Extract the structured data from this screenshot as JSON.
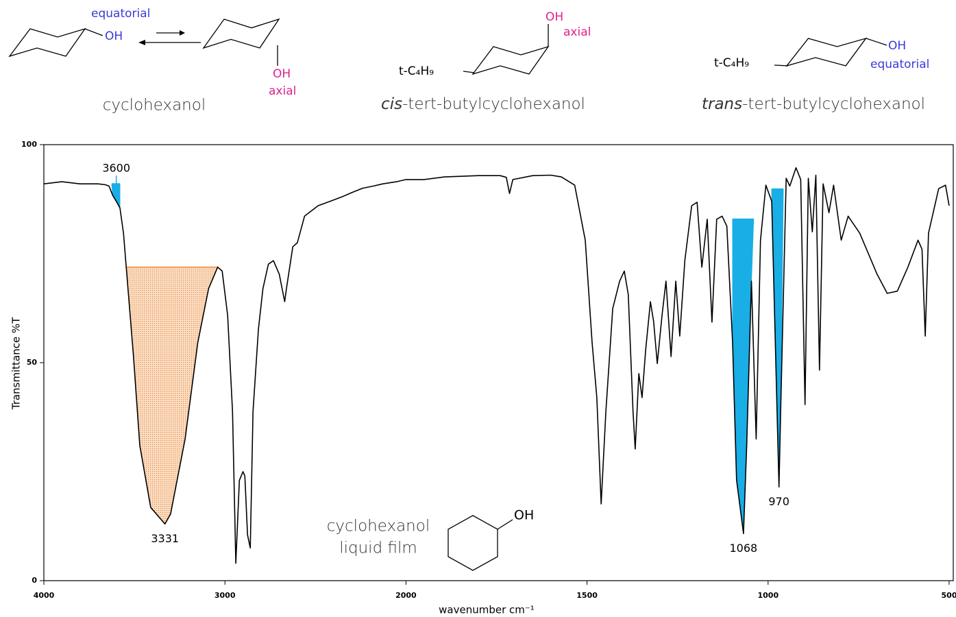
{
  "structures": [
    {
      "name": "cyclohexanol",
      "equatorial_label": "equatorial",
      "equatorial_group": "OH",
      "axial_group": "OH",
      "axial_label": "axial"
    },
    {
      "name_italic": "cis",
      "name": "-tert-butylcyclohexanol",
      "substituent": "t-C₄H₉",
      "axial_group": "OH",
      "axial_label": "axial"
    },
    {
      "name_italic": "trans",
      "name": "-tert-butylcyclohexanol",
      "substituent": "t-C₄H₉",
      "equatorial_group": "OH",
      "equatorial_label": "equatorial"
    }
  ],
  "chart_data": {
    "type": "line",
    "xlabel": "wavenumber cm⁻¹",
    "ylabel": "Transmittance %T",
    "xlim": [
      4000,
      500
    ],
    "ylim": [
      0,
      100
    ],
    "xticks": [
      4000,
      3000,
      2000,
      1500,
      1000,
      500
    ],
    "yticks": [
      0,
      50,
      100
    ],
    "annotations": [
      "cyclohexanol",
      "liquid film"
    ],
    "annotation_group": "OH",
    "series": [
      {
        "color": "#000000",
        "x": [
          4000,
          3900,
          3800,
          3700,
          3660,
          3640,
          3620,
          3600,
          3580,
          3560,
          3545,
          3505,
          3470,
          3410,
          3331,
          3300,
          3220,
          3150,
          3090,
          3040,
          3015,
          2985,
          2958,
          2940,
          2920,
          2900,
          2890,
          2875,
          2860,
          2845,
          2815,
          2790,
          2760,
          2732,
          2700,
          2670,
          2660,
          2625,
          2600,
          2560,
          2485,
          2420,
          2355,
          2300,
          2240,
          2180,
          2128,
          2053,
          2000,
          1950,
          1894,
          1800,
          1740,
          1723,
          1714,
          1705,
          1650,
          1600,
          1571,
          1534,
          1505,
          1486,
          1473,
          1461,
          1448,
          1429,
          1410,
          1397,
          1386,
          1373,
          1367,
          1357,
          1348,
          1338,
          1325,
          1316,
          1306,
          1293,
          1282,
          1268,
          1255,
          1244,
          1230,
          1211,
          1196,
          1183,
          1168,
          1155,
          1142,
          1127,
          1114,
          1098,
          1087,
          1068,
          1059,
          1046,
          1033,
          1021,
          1006,
          990,
          970,
          965,
          950,
          940,
          923,
          910,
          898,
          889,
          878,
          868,
          858,
          848,
          832,
          819,
          798,
          779,
          747,
          699,
          671,
          643,
          614,
          586,
          575,
          566,
          557,
          529,
          510,
          500
        ],
        "values": [
          91,
          91.5,
          91,
          91,
          90.8,
          90.5,
          88.4,
          87,
          85.5,
          79.7,
          71.9,
          51.4,
          31,
          16.8,
          13,
          15.3,
          32.5,
          54.6,
          67,
          71.9,
          71,
          60.8,
          38.8,
          4,
          23,
          25,
          24,
          10.5,
          7.5,
          38.8,
          57.7,
          67,
          72.6,
          73.4,
          70.3,
          64,
          67,
          76.6,
          77.5,
          83.6,
          86,
          87,
          88,
          89,
          90,
          90.5,
          91,
          91.5,
          92,
          92,
          92.6,
          92.9,
          92.9,
          92.5,
          88.8,
          92,
          92.9,
          93,
          92.6,
          90.7,
          78.1,
          54.6,
          42,
          17.6,
          38.8,
          62.4,
          68.7,
          71,
          65.6,
          38.8,
          30.2,
          47.5,
          42,
          53,
          64,
          59.4,
          49.8,
          60.8,
          68.7,
          51.4,
          68.7,
          56.1,
          73.4,
          86,
          86.8,
          71.9,
          82.9,
          59.3,
          82.9,
          83.6,
          81.3,
          54.6,
          23.1,
          10.8,
          31,
          68.7,
          32.5,
          78.1,
          90.7,
          87,
          21.5,
          40,
          92.3,
          90.5,
          94.7,
          92,
          40.4,
          92.3,
          80,
          93,
          48.3,
          91,
          84.4,
          90.7,
          78.1,
          83.6,
          79.7,
          70.3,
          65.9,
          66.4,
          71.9,
          78.1,
          76,
          56.1,
          79.7,
          89.9,
          90.7,
          86
        ]
      }
    ],
    "highlights": [
      {
        "x": 3600,
        "from": 3625,
        "to": 3580,
        "level": 91,
        "color": "#19aee6",
        "label_position": "above"
      },
      {
        "x": 3331,
        "from": 3545,
        "to": 3035,
        "level": 71.9,
        "color": "#f0a060",
        "label_position": "below"
      },
      {
        "x": 1068,
        "from": 1098,
        "to": 1040,
        "level": 82.9,
        "color": "#19aee6",
        "label_position": "below"
      },
      {
        "x": 970,
        "from": 990,
        "to": 958,
        "level": 89.8,
        "color": "#19aee6",
        "label_position": "below"
      }
    ]
  }
}
